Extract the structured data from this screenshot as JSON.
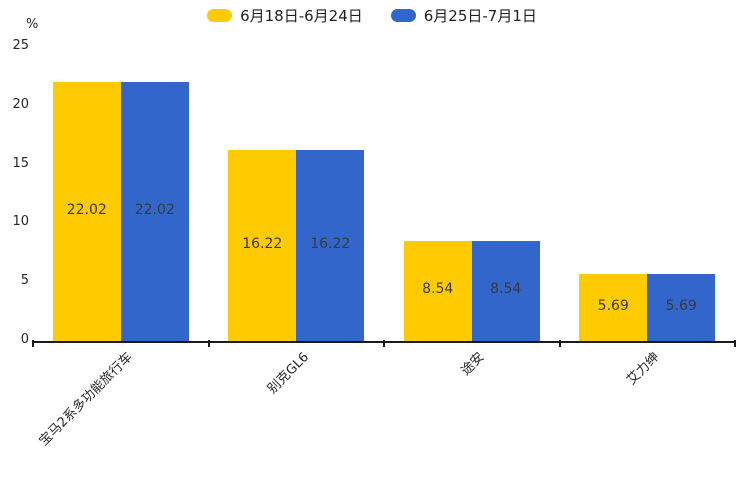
{
  "chart_data": {
    "type": "bar",
    "title": "",
    "xlabel": "",
    "ylabel": "%",
    "categories": [
      "宝马2系多功能旅行车",
      "别克GL6",
      "途安",
      "艾力绅"
    ],
    "series": [
      {
        "name": "6月18日-6月24日",
        "color": "#FECB00",
        "values": [
          22.02,
          16.22,
          8.54,
          5.69
        ]
      },
      {
        "name": "6月25日-7月1日",
        "color": "#3366CB",
        "values": [
          22.02,
          16.22,
          8.54,
          5.69
        ]
      }
    ],
    "value_labels": [
      "22.02",
      "16.22",
      "8.54",
      "5.69"
    ],
    "ylim": [
      0,
      25
    ],
    "yticks": [
      0,
      5,
      10,
      15,
      20,
      25
    ],
    "grid": false,
    "legend_position": "top",
    "value_label_color": "#3a3a3a",
    "axis_color": "#1a1a1a"
  }
}
